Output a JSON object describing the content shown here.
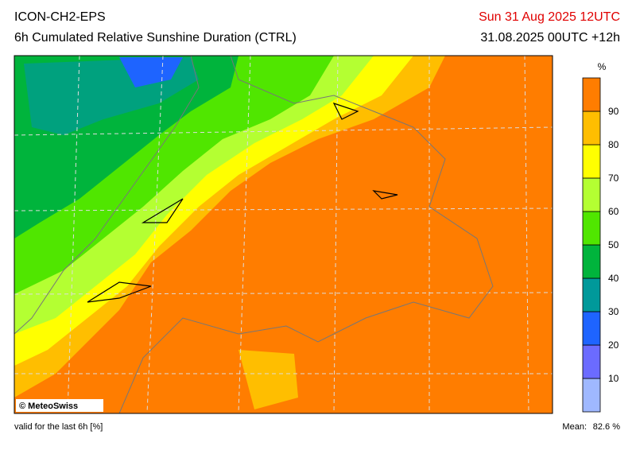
{
  "header": {
    "model": "ICON-CH2-EPS",
    "title": "6h Cumulated Relative Sunshine Duration (CTRL)",
    "valid_date": "Sun 31 Aug 2025 12UTC",
    "run": "31.08.2025 00UTC +12h"
  },
  "map": {
    "credit": "© MeteoSwiss"
  },
  "legend": {
    "unit": "%",
    "levels": [
      10,
      20,
      30,
      40,
      50,
      60,
      70,
      80,
      90
    ],
    "colors": [
      "#9fb8ff",
      "#6b6bff",
      "#1e64ff",
      "#00999a",
      "#00b43c",
      "#50e600",
      "#b4ff32",
      "#ffff00",
      "#ffbe00",
      "#ff7d00"
    ]
  },
  "footer": {
    "note": "valid for the last 6h [%]",
    "mean_label": "Mean:",
    "mean_value": "82.6 %"
  }
}
